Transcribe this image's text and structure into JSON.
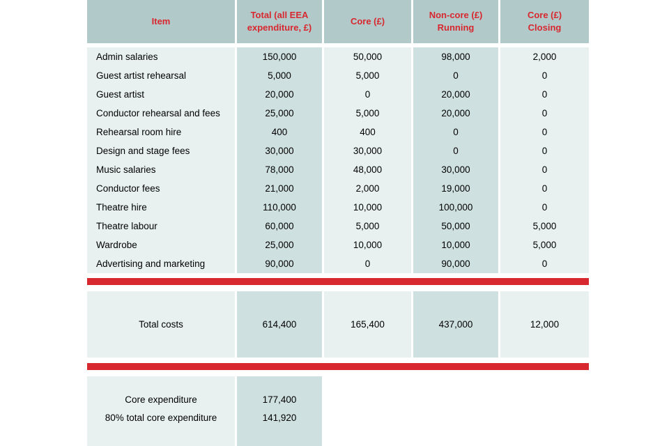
{
  "colors": {
    "header_bg": "#b2c9c9",
    "light_bg": "#e8f1f0",
    "dark_bg": "#cfe0e0",
    "red": "#d7282f",
    "text": "#000000"
  },
  "table": {
    "columns": [
      "Item",
      "Total (all EEA\nexpenditure, £)",
      "Core (£)",
      "Non-core (£)\nRunning",
      "Core (£)\nClosing"
    ],
    "rows": [
      [
        "Admin salaries",
        "150,000",
        "50,000",
        "98,000",
        "2,000"
      ],
      [
        "Guest artist rehearsal",
        "5,000",
        "5,000",
        "0",
        "0"
      ],
      [
        "Guest artist",
        "20,000",
        "0",
        "20,000",
        "0"
      ],
      [
        "Conductor rehearsal and fees",
        "25,000",
        "5,000",
        "20,000",
        "0"
      ],
      [
        "Rehearsal room hire",
        "400",
        "400",
        "0",
        "0"
      ],
      [
        "Design and stage fees",
        "30,000",
        "30,000",
        "0",
        "0"
      ],
      [
        "Music salaries",
        "78,000",
        "48,000",
        "30,000",
        "0"
      ],
      [
        "Conductor fees",
        "21,000",
        "2,000",
        "19,000",
        "0"
      ],
      [
        "Theatre hire",
        "110,000",
        "10,000",
        "100,000",
        "0"
      ],
      [
        "Theatre labour",
        "60,000",
        "5,000",
        "50,000",
        "5,000"
      ],
      [
        "Wardrobe",
        "25,000",
        "10,000",
        "10,000",
        "5,000"
      ],
      [
        "Advertising and marketing",
        "90,000",
        "0",
        "90,000",
        "0"
      ]
    ],
    "total_row": [
      "Total costs",
      "614,400",
      "165,400",
      "437,000",
      "12,000"
    ],
    "summary_rows": [
      [
        "Core expenditure",
        "177,400"
      ],
      [
        "80% total core expenditure",
        "141,920"
      ]
    ]
  }
}
